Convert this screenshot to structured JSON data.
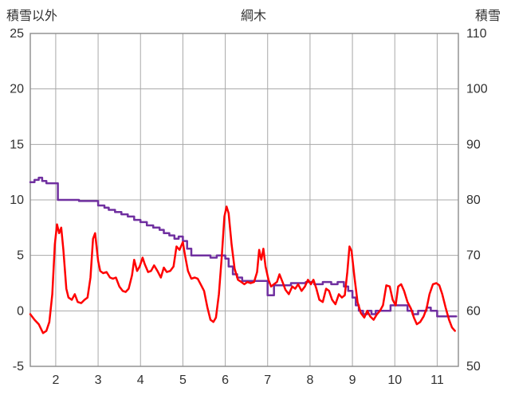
{
  "chart_data": {
    "type": "line",
    "title": "綱木",
    "grid_color": "#a8a8a8",
    "border_color": "#8c8c8c",
    "text_color": "#303030",
    "left_axis": {
      "label": "積雪以外",
      "min": -5,
      "max": 25,
      "ticks": [
        -5,
        0,
        5,
        10,
        15,
        20,
        25
      ]
    },
    "right_axis": {
      "label": "積雪",
      "min": 50,
      "max": 110,
      "ticks": [
        50,
        60,
        70,
        80,
        90,
        100,
        110
      ]
    },
    "x_axis": {
      "min": 1.4,
      "max": 11.5,
      "ticks": [
        2,
        3,
        4,
        5,
        6,
        7,
        8,
        9,
        10,
        11
      ]
    },
    "series": [
      {
        "name": "積雪",
        "color": "#7030A0",
        "axis": "right",
        "step": true,
        "width": 2.5,
        "points": [
          [
            1.4,
            83.2
          ],
          [
            1.5,
            83.6
          ],
          [
            1.6,
            84.0
          ],
          [
            1.68,
            83.4
          ],
          [
            1.78,
            83.0
          ],
          [
            2.05,
            80.0
          ],
          [
            2.55,
            79.8
          ],
          [
            3.0,
            79.0
          ],
          [
            3.15,
            78.6
          ],
          [
            3.25,
            78.2
          ],
          [
            3.4,
            77.8
          ],
          [
            3.55,
            77.4
          ],
          [
            3.7,
            77.0
          ],
          [
            3.85,
            76.4
          ],
          [
            4.0,
            76.0
          ],
          [
            4.15,
            75.4
          ],
          [
            4.3,
            75.0
          ],
          [
            4.45,
            74.6
          ],
          [
            4.55,
            74.0
          ],
          [
            4.68,
            73.6
          ],
          [
            4.8,
            73.0
          ],
          [
            4.9,
            73.4
          ],
          [
            5.0,
            72.6
          ],
          [
            5.1,
            71.2
          ],
          [
            5.2,
            70.0
          ],
          [
            5.65,
            69.6
          ],
          [
            5.8,
            70.0
          ],
          [
            6.0,
            69.4
          ],
          [
            6.08,
            68.0
          ],
          [
            6.18,
            66.6
          ],
          [
            6.28,
            66.0
          ],
          [
            6.4,
            65.4
          ],
          [
            7.0,
            62.8
          ],
          [
            7.15,
            64.6
          ],
          [
            7.55,
            65.0
          ],
          [
            7.9,
            65.2
          ],
          [
            8.1,
            64.8
          ],
          [
            8.3,
            65.2
          ],
          [
            8.5,
            64.8
          ],
          [
            8.65,
            65.2
          ],
          [
            8.8,
            64.4
          ],
          [
            8.9,
            63.6
          ],
          [
            9.0,
            62.4
          ],
          [
            9.08,
            61.0
          ],
          [
            9.15,
            60.0
          ],
          [
            9.25,
            59.4
          ],
          [
            9.35,
            60.0
          ],
          [
            9.45,
            59.4
          ],
          [
            9.55,
            60.0
          ],
          [
            9.9,
            61.0
          ],
          [
            10.3,
            60.0
          ],
          [
            10.42,
            59.4
          ],
          [
            10.55,
            60.0
          ],
          [
            10.75,
            60.6
          ],
          [
            10.85,
            60.0
          ],
          [
            11.0,
            59.0
          ],
          [
            11.45,
            59.0
          ]
        ]
      },
      {
        "name": "積雪以外",
        "color": "#ff0000",
        "axis": "left",
        "step": false,
        "width": 2.5,
        "points": [
          [
            1.4,
            -0.3
          ],
          [
            1.5,
            -0.8
          ],
          [
            1.6,
            -1.2
          ],
          [
            1.7,
            -2.0
          ],
          [
            1.78,
            -1.8
          ],
          [
            1.85,
            -1.0
          ],
          [
            1.92,
            1.5
          ],
          [
            1.98,
            6.0
          ],
          [
            2.03,
            7.8
          ],
          [
            2.08,
            7.0
          ],
          [
            2.13,
            7.5
          ],
          [
            2.18,
            5.5
          ],
          [
            2.25,
            2.0
          ],
          [
            2.3,
            1.2
          ],
          [
            2.38,
            1.0
          ],
          [
            2.45,
            1.5
          ],
          [
            2.52,
            0.8
          ],
          [
            2.6,
            0.7
          ],
          [
            2.68,
            1.0
          ],
          [
            2.75,
            1.2
          ],
          [
            2.82,
            3.0
          ],
          [
            2.88,
            6.5
          ],
          [
            2.93,
            7.0
          ],
          [
            3.0,
            4.5
          ],
          [
            3.05,
            3.6
          ],
          [
            3.12,
            3.4
          ],
          [
            3.2,
            3.5
          ],
          [
            3.28,
            3.0
          ],
          [
            3.35,
            2.9
          ],
          [
            3.42,
            3.0
          ],
          [
            3.5,
            2.2
          ],
          [
            3.58,
            1.8
          ],
          [
            3.65,
            1.7
          ],
          [
            3.72,
            2.0
          ],
          [
            3.8,
            3.2
          ],
          [
            3.85,
            4.6
          ],
          [
            3.92,
            3.6
          ],
          [
            3.98,
            4.0
          ],
          [
            4.05,
            4.8
          ],
          [
            4.1,
            4.2
          ],
          [
            4.18,
            3.5
          ],
          [
            4.25,
            3.6
          ],
          [
            4.32,
            4.1
          ],
          [
            4.4,
            3.6
          ],
          [
            4.48,
            3.0
          ],
          [
            4.55,
            3.9
          ],
          [
            4.62,
            3.5
          ],
          [
            4.7,
            3.6
          ],
          [
            4.78,
            4.0
          ],
          [
            4.85,
            5.8
          ],
          [
            4.92,
            5.5
          ],
          [
            5.0,
            6.2
          ],
          [
            5.05,
            5.0
          ],
          [
            5.12,
            3.6
          ],
          [
            5.2,
            2.9
          ],
          [
            5.28,
            3.0
          ],
          [
            5.35,
            2.9
          ],
          [
            5.42,
            2.4
          ],
          [
            5.5,
            1.8
          ],
          [
            5.58,
            0.3
          ],
          [
            5.65,
            -0.8
          ],
          [
            5.72,
            -1.0
          ],
          [
            5.78,
            -0.6
          ],
          [
            5.85,
            1.5
          ],
          [
            5.92,
            5.0
          ],
          [
            5.98,
            8.5
          ],
          [
            6.03,
            9.4
          ],
          [
            6.08,
            8.8
          ],
          [
            6.15,
            6.0
          ],
          [
            6.22,
            3.8
          ],
          [
            6.3,
            2.8
          ],
          [
            6.38,
            2.6
          ],
          [
            6.45,
            2.4
          ],
          [
            6.52,
            2.6
          ],
          [
            6.6,
            2.5
          ],
          [
            6.68,
            2.6
          ],
          [
            6.75,
            3.5
          ],
          [
            6.8,
            5.5
          ],
          [
            6.85,
            4.6
          ],
          [
            6.9,
            5.6
          ],
          [
            6.95,
            4.0
          ],
          [
            7.02,
            2.8
          ],
          [
            7.08,
            2.2
          ],
          [
            7.15,
            2.4
          ],
          [
            7.22,
            2.6
          ],
          [
            7.28,
            3.3
          ],
          [
            7.35,
            2.6
          ],
          [
            7.42,
            1.9
          ],
          [
            7.5,
            1.5
          ],
          [
            7.58,
            2.2
          ],
          [
            7.65,
            2.0
          ],
          [
            7.72,
            2.4
          ],
          [
            7.8,
            1.8
          ],
          [
            7.88,
            2.2
          ],
          [
            7.95,
            2.8
          ],
          [
            8.02,
            2.4
          ],
          [
            8.08,
            2.8
          ],
          [
            8.15,
            2.0
          ],
          [
            8.22,
            1.0
          ],
          [
            8.3,
            0.8
          ],
          [
            8.38,
            2.0
          ],
          [
            8.45,
            1.8
          ],
          [
            8.52,
            1.0
          ],
          [
            8.6,
            0.6
          ],
          [
            8.68,
            1.5
          ],
          [
            8.75,
            1.2
          ],
          [
            8.82,
            1.4
          ],
          [
            8.88,
            3.5
          ],
          [
            8.93,
            5.8
          ],
          [
            8.98,
            5.4
          ],
          [
            9.05,
            3.0
          ],
          [
            9.12,
            0.8
          ],
          [
            9.2,
            -0.2
          ],
          [
            9.28,
            -0.6
          ],
          [
            9.35,
            0.0
          ],
          [
            9.42,
            -0.5
          ],
          [
            9.5,
            -0.8
          ],
          [
            9.58,
            -0.3
          ],
          [
            9.65,
            0.0
          ],
          [
            9.72,
            0.5
          ],
          [
            9.8,
            2.3
          ],
          [
            9.88,
            2.2
          ],
          [
            9.95,
            1.0
          ],
          [
            10.02,
            0.5
          ],
          [
            10.08,
            2.2
          ],
          [
            10.15,
            2.4
          ],
          [
            10.22,
            1.8
          ],
          [
            10.3,
            0.8
          ],
          [
            10.38,
            0.2
          ],
          [
            10.45,
            -0.6
          ],
          [
            10.52,
            -1.2
          ],
          [
            10.6,
            -1.0
          ],
          [
            10.68,
            -0.5
          ],
          [
            10.75,
            0.2
          ],
          [
            10.82,
            1.5
          ],
          [
            10.9,
            2.4
          ],
          [
            10.98,
            2.5
          ],
          [
            11.05,
            2.3
          ],
          [
            11.12,
            1.5
          ],
          [
            11.2,
            0.3
          ],
          [
            11.28,
            -0.8
          ],
          [
            11.35,
            -1.5
          ],
          [
            11.42,
            -1.8
          ]
        ]
      }
    ]
  }
}
